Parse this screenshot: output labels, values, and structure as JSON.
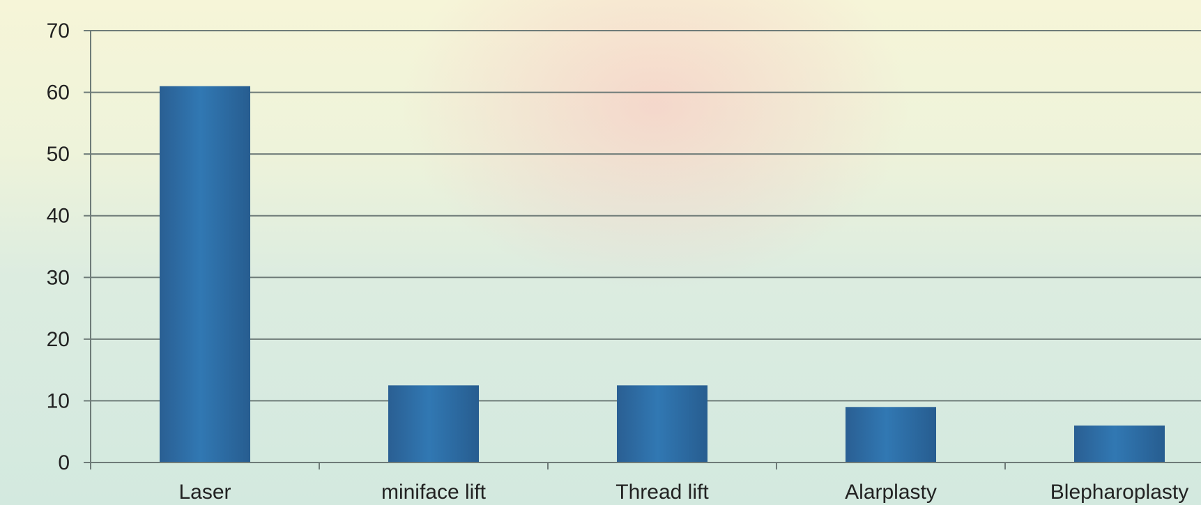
{
  "chart_data": {
    "type": "bar",
    "categories": [
      "Laser",
      "miniface lift",
      "Thread lift",
      "Alarplasty",
      "Blepharoplasty"
    ],
    "values": [
      61,
      12.5,
      12.5,
      9,
      6
    ],
    "ylim": [
      0,
      70
    ],
    "yticks": [
      0,
      10,
      20,
      30,
      40,
      50,
      60,
      70
    ],
    "ytick_labels": [
      "0",
      "10",
      "20",
      "30",
      "40",
      "50",
      "60",
      "70"
    ],
    "grid": true,
    "legend": "none",
    "bar_color": "#2e6fa8",
    "gridline_color": "#6e7b78"
  }
}
